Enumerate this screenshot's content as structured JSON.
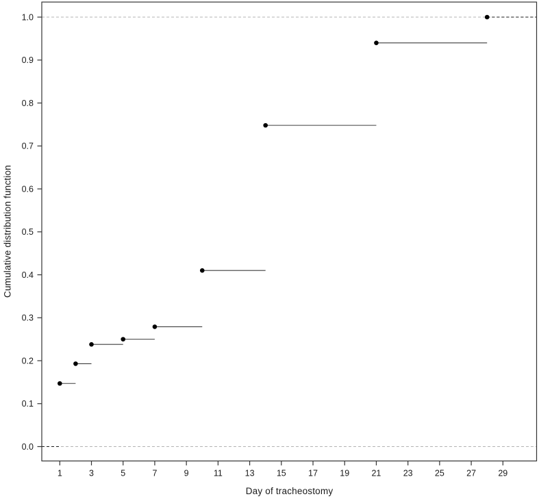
{
  "chart_data": {
    "type": "step",
    "subtype": "empirical-cdf",
    "title": "",
    "xlabel": "Day of tracheostomy",
    "ylabel": "Cumulative distribution function",
    "x": [
      1,
      2,
      3,
      5,
      7,
      10,
      14,
      21,
      28
    ],
    "y": [
      0.147,
      0.193,
      0.238,
      0.25,
      0.279,
      0.41,
      0.748,
      0.94,
      1.0
    ],
    "xticks": [
      1,
      3,
      5,
      7,
      9,
      11,
      13,
      15,
      17,
      19,
      21,
      23,
      25,
      27,
      29
    ],
    "ytick_values": [
      0.0,
      0.1,
      0.2,
      0.3,
      0.4,
      0.5,
      0.6,
      0.7,
      0.8,
      0.9,
      1.0
    ],
    "ytick_labels": [
      "0.0",
      "0.1",
      "0.2",
      "0.3",
      "0.4",
      "0.5",
      "0.6",
      "0.7",
      "0.8",
      "0.9",
      "1.0"
    ],
    "xlim": [
      0,
      31
    ],
    "ylim": [
      0.0,
      1.0
    ],
    "grid": false,
    "legend": null,
    "guide_lines": [
      {
        "y": 0.0,
        "style": "dashed"
      },
      {
        "y": 1.0,
        "style": "dashed"
      }
    ],
    "extension_left": {
      "y": 0.0,
      "to_x": 1,
      "style": "dashed"
    },
    "extension_right": {
      "y": 1.0,
      "from_x": 28,
      "style": "dashed"
    },
    "marker": "filled-circle",
    "colors": {
      "point": "#000000",
      "line": "#3d3d3d",
      "axis": "#333333",
      "tick_label": "#1a1a1a",
      "guide": "#b3b3b3",
      "extension": "#1a1a1a",
      "background": "#ffffff"
    }
  }
}
